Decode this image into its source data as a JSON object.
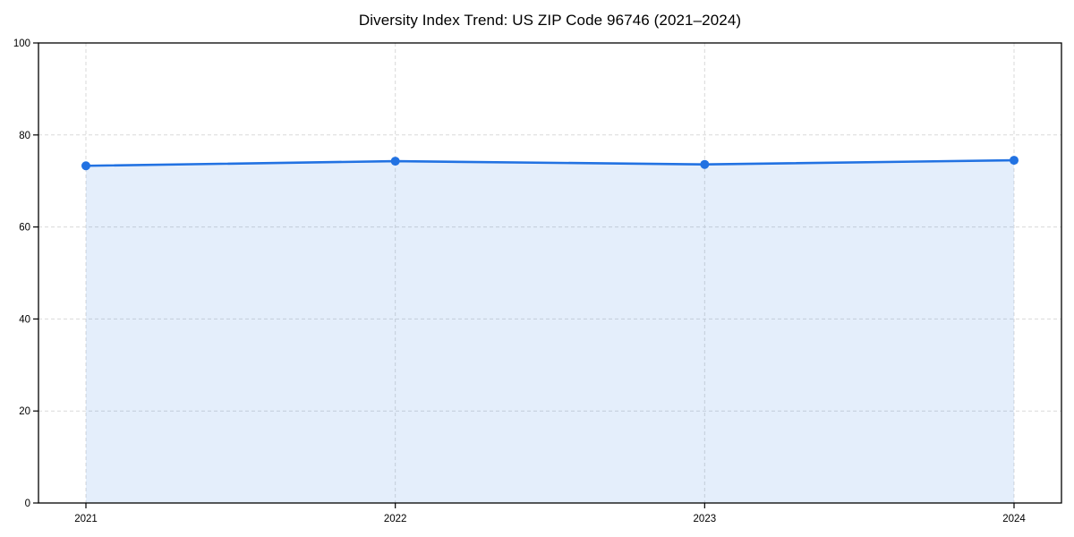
{
  "chart_data": {
    "type": "area",
    "title": "Diversity Index Trend: US ZIP Code 96746 (2021–2024)",
    "x": [
      "2021",
      "2022",
      "2023",
      "2024"
    ],
    "series": [
      {
        "name": "Diversity Index",
        "values": [
          73.3,
          74.3,
          73.6,
          74.5
        ]
      }
    ],
    "xlabel": "",
    "ylabel": "",
    "ylim": [
      0,
      100
    ],
    "yticks": [
      0,
      20,
      40,
      60,
      80,
      100
    ],
    "grid": true,
    "grid_style": "dashed",
    "legend": "none",
    "colors": {
      "line": "#2272e2",
      "marker": "#2272e2",
      "fill": "#2272e2",
      "fill_opacity": 0.12,
      "grid": "#d9d9d9",
      "axis": "#000000",
      "background": "#ffffff",
      "text": "#000000"
    }
  }
}
